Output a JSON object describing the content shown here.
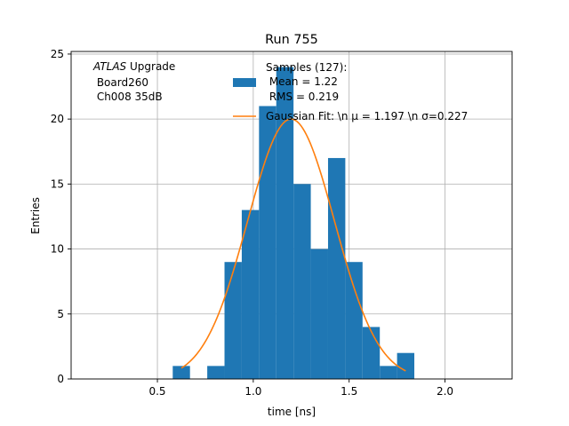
{
  "chart_data": {
    "type": "bar",
    "title": "Run 755",
    "xlabel": "time [ns]",
    "ylabel": "Entries",
    "xlim": [
      0.05,
      2.35
    ],
    "ylim": [
      0,
      25.2
    ],
    "grid": true,
    "x_ticks": [
      0.5,
      1.0,
      1.5,
      2.0
    ],
    "x_tick_labels": [
      "0.5",
      "1.0",
      "1.5",
      "2.0"
    ],
    "y_ticks": [
      0,
      5,
      10,
      15,
      20,
      25
    ],
    "y_tick_labels": [
      "0",
      "5",
      "10",
      "15",
      "20",
      "25"
    ],
    "annotation": {
      "line1_italic": "ATLAS",
      "line1_rest": " Upgrade",
      "line2": " Board260",
      "line3": " Ch008 35dB"
    },
    "histogram": {
      "name": "Samples (127):",
      "name_line2": " Mean = 1.22",
      "name_line3": " RMS = 0.219",
      "color": "#1f77b4",
      "bins": [
        {
          "x0": 0.58,
          "x1": 0.67,
          "count": 1
        },
        {
          "x0": 0.67,
          "x1": 0.76,
          "count": 0
        },
        {
          "x0": 0.76,
          "x1": 0.85,
          "count": 1
        },
        {
          "x0": 0.85,
          "x1": 0.94,
          "count": 9
        },
        {
          "x0": 0.94,
          "x1": 1.03,
          "count": 13
        },
        {
          "x0": 1.03,
          "x1": 1.12,
          "count": 21
        },
        {
          "x0": 1.12,
          "x1": 1.21,
          "count": 24
        },
        {
          "x0": 1.21,
          "x1": 1.3,
          "count": 15
        },
        {
          "x0": 1.3,
          "x1": 1.39,
          "count": 10
        },
        {
          "x0": 1.39,
          "x1": 1.48,
          "count": 17
        },
        {
          "x0": 1.48,
          "x1": 1.57,
          "count": 9
        },
        {
          "x0": 1.57,
          "x1": 1.66,
          "count": 4
        },
        {
          "x0": 1.66,
          "x1": 1.75,
          "count": 1
        },
        {
          "x0": 1.75,
          "x1": 1.84,
          "count": 2
        }
      ]
    },
    "fit": {
      "label": "Gaussian Fit: \\n μ = 1.197 \\n σ=0.227",
      "color": "#ff7f0e",
      "mu": 1.197,
      "sigma": 0.227,
      "amplitude": 20.0,
      "x_range": [
        0.625,
        1.795
      ]
    },
    "legend_placement": "top-center"
  }
}
